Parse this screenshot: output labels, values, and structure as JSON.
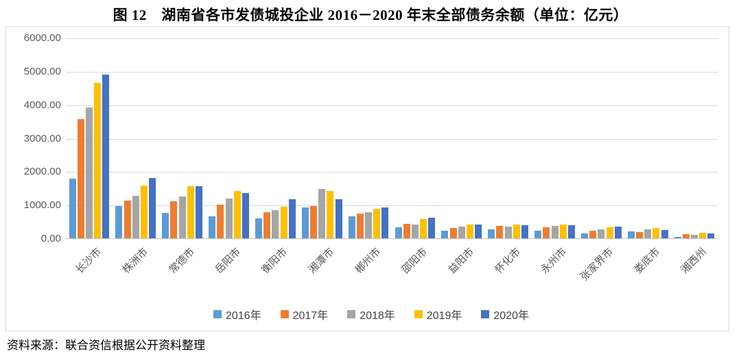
{
  "figure": {
    "title": "图 12　湖南省各市发债城投企业 2016－2020 年末全部债务余额（单位：亿元）",
    "source_note": "资料来源：联合资信根据公开资料整理"
  },
  "chart_data": {
    "type": "bar",
    "title": "图 12　湖南省各市发债城投企业 2016－2020 年末全部债务余额（单位：亿元）",
    "unit": "亿元",
    "categories": [
      "长沙市",
      "株洲市",
      "常德市",
      "岳阳市",
      "衡阳市",
      "湘潭市",
      "郴州市",
      "邵阳市",
      "益阳市",
      "怀化市",
      "永州市",
      "张家界市",
      "娄底市",
      "湘西州"
    ],
    "series": [
      {
        "name": "2016年",
        "color": "#5B9BD5",
        "values": [
          1780,
          970,
          760,
          660,
          590,
          930,
          650,
          320,
          230,
          260,
          220,
          150,
          195,
          50
        ]
      },
      {
        "name": "2017年",
        "color": "#ED7D31",
        "values": [
          3560,
          1120,
          1100,
          1000,
          780,
          970,
          730,
          430,
          300,
          360,
          320,
          220,
          175,
          115
        ]
      },
      {
        "name": "2018年",
        "color": "#A5A5A5",
        "values": [
          3910,
          1270,
          1240,
          1190,
          830,
          1480,
          770,
          420,
          340,
          350,
          360,
          260,
          260,
          110
        ]
      },
      {
        "name": "2019年",
        "color": "#FFC000",
        "values": [
          4640,
          1570,
          1560,
          1420,
          940,
          1410,
          890,
          570,
          410,
          410,
          410,
          320,
          310,
          170
        ]
      },
      {
        "name": "2020年",
        "color": "#4472C4",
        "values": [
          4890,
          1800,
          1550,
          1360,
          1170,
          1160,
          920,
          610,
          410,
          390,
          380,
          340,
          240,
          150
        ]
      }
    ],
    "ylim": [
      0,
      6000
    ],
    "ytick_step": 1000,
    "ytick_labels": [
      "0.00",
      "1000.00",
      "2000.00",
      "3000.00",
      "4000.00",
      "5000.00",
      "6000.00"
    ],
    "grid": true,
    "legend_position": "bottom",
    "gridline_color": "#D9D9D9",
    "axis_text_color": "#595959"
  }
}
